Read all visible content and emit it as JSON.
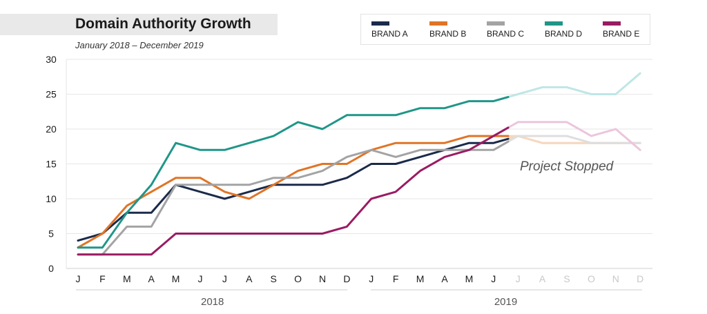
{
  "chart_data": {
    "type": "line",
    "title": "Domain Authority Growth",
    "subtitle": "January 2018 – December 2019",
    "xlabel": "",
    "ylabel": "",
    "ylim": [
      0,
      30
    ],
    "yticks": [
      "0",
      "5",
      "10",
      "15",
      "20",
      "25",
      "30"
    ],
    "grid": true,
    "legend_position": "top-right",
    "categories": [
      "J",
      "F",
      "M",
      "A",
      "M",
      "J",
      "J",
      "A",
      "S",
      "O",
      "N",
      "D",
      "J",
      "F",
      "M",
      "A",
      "M",
      "J",
      "J",
      "A",
      "S",
      "O",
      "N",
      "D"
    ],
    "year_labels": [
      "2018",
      "2019"
    ],
    "active_months": 18,
    "annotation": "Project Stopped",
    "series": [
      {
        "name": "BRAND A",
        "color": "#1b2a4a",
        "faded_color": "#f0d9b8",
        "values": [
          4,
          5,
          8,
          8,
          12,
          11,
          10,
          11,
          12,
          12,
          12,
          13,
          15,
          15,
          16,
          17,
          18,
          18,
          19,
          18,
          18,
          18,
          18,
          18
        ]
      },
      {
        "name": "BRAND B",
        "color": "#e07426",
        "faded_color": "#f7d8bf",
        "values": [
          3,
          5,
          9,
          11,
          13,
          13,
          11,
          10,
          12,
          14,
          15,
          15,
          17,
          18,
          18,
          18,
          19,
          19,
          19,
          18,
          18,
          18,
          18,
          18
        ]
      },
      {
        "name": "BRAND C",
        "color": "#a3a3a3",
        "faded_color": "#dedede",
        "values": [
          2,
          2,
          6,
          6,
          12,
          12,
          12,
          12,
          13,
          13,
          14,
          16,
          17,
          16,
          17,
          17,
          17,
          17,
          19,
          19,
          19,
          18,
          18,
          18
        ]
      },
      {
        "name": "BRAND D",
        "color": "#1f9688",
        "faded_color": "#bfe6e6",
        "values": [
          3,
          3,
          8,
          12,
          18,
          17,
          17,
          18,
          19,
          21,
          20,
          22,
          22,
          22,
          23,
          23,
          24,
          24,
          25,
          26,
          26,
          25,
          25,
          28
        ]
      },
      {
        "name": "BRAND E",
        "color": "#9a1b62",
        "faded_color": "#ebc6dc",
        "values": [
          2,
          2,
          2,
          2,
          5,
          5,
          5,
          5,
          5,
          5,
          5,
          6,
          10,
          11,
          14,
          16,
          17,
          19,
          21,
          21,
          21,
          19,
          20,
          17
        ]
      }
    ]
  }
}
